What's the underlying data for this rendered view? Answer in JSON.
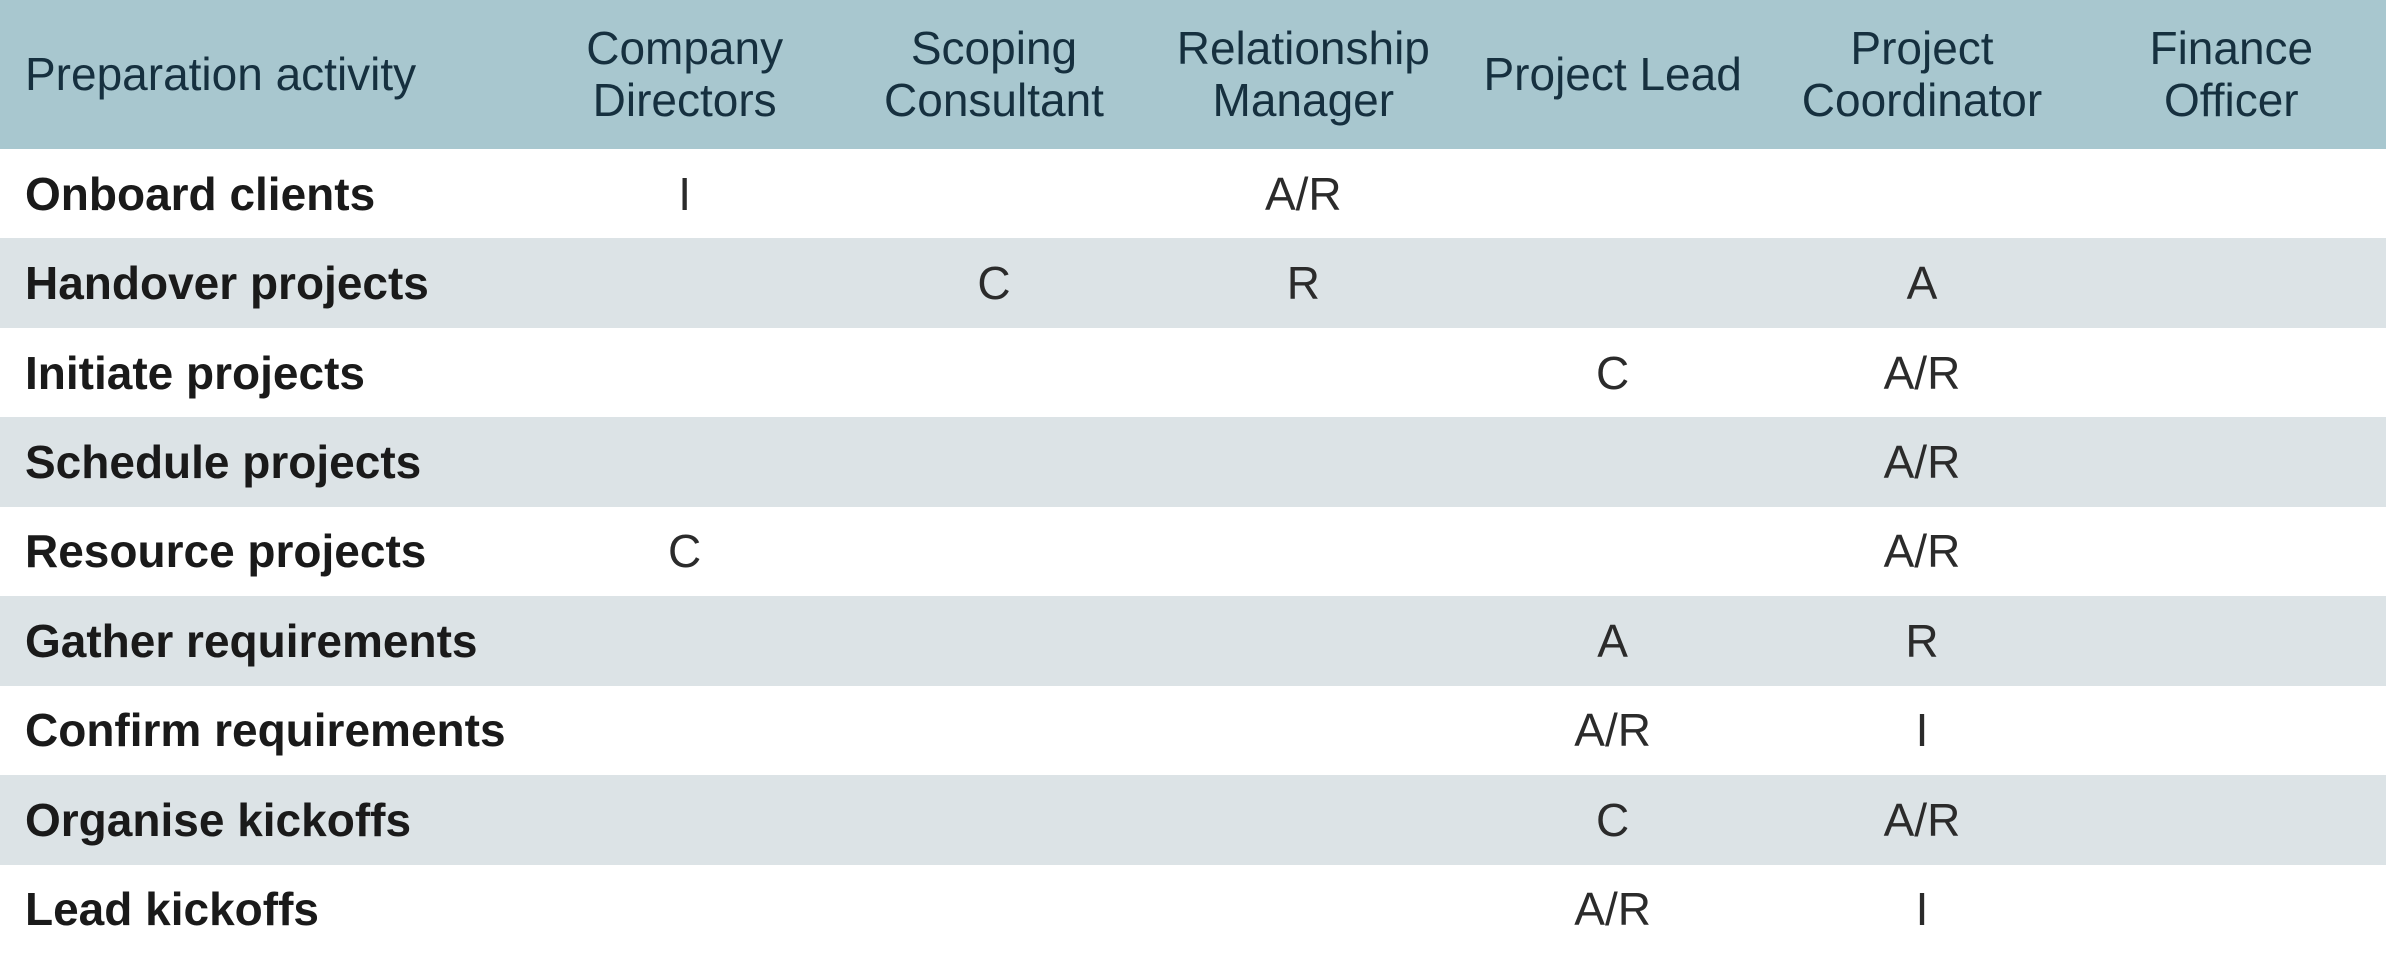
{
  "colors": {
    "header_bg": "#a8c7cf",
    "header_text": "#16303f",
    "row_bg": "#ffffff",
    "row_alt_bg": "#dce3e6",
    "label_text": "#1a1a1a",
    "cell_text": "#2b2b2b"
  },
  "matrix": {
    "activity_header": "Preparation activity",
    "role_headers": [
      "Company Directors",
      "Scoping Consultant",
      "Relationship Manager",
      "Project Lead",
      "Project Coordinator",
      "Finance Officer"
    ],
    "legend_values_used": [
      "R",
      "A",
      "C",
      "I",
      "A/R"
    ],
    "rows": [
      {
        "label": "Onboard clients",
        "cells": [
          "I",
          "",
          "A/R",
          "",
          "",
          ""
        ]
      },
      {
        "label": "Handover projects",
        "cells": [
          "",
          "C",
          "R",
          "",
          "A",
          ""
        ]
      },
      {
        "label": "Initiate projects",
        "cells": [
          "",
          "",
          "",
          "C",
          "A/R",
          ""
        ]
      },
      {
        "label": "Schedule projects",
        "cells": [
          "",
          "",
          "",
          "",
          "A/R",
          ""
        ]
      },
      {
        "label": "Resource projects",
        "cells": [
          "C",
          "",
          "",
          "",
          "A/R",
          ""
        ]
      },
      {
        "label": "Gather requirements",
        "cells": [
          "",
          "",
          "",
          "A",
          "R",
          ""
        ]
      },
      {
        "label": "Confirm requirements",
        "cells": [
          "",
          "",
          "",
          "A/R",
          "I",
          ""
        ]
      },
      {
        "label": "Organise kickoffs",
        "cells": [
          "",
          "",
          "",
          "C",
          "A/R",
          ""
        ]
      },
      {
        "label": "Lead kickoffs",
        "cells": [
          "",
          "",
          "",
          "A/R",
          "I",
          ""
        ]
      }
    ]
  }
}
